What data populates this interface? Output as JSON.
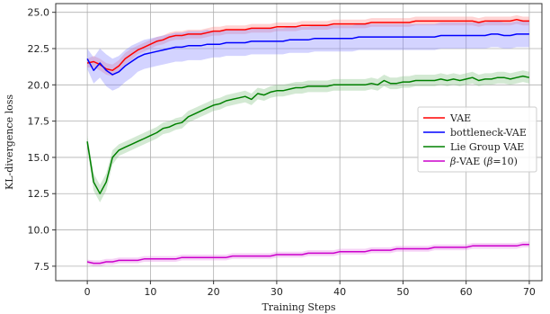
{
  "chart_data": {
    "type": "line",
    "xlabel": "Training Steps",
    "ylabel": "KL-divergence loss",
    "xlim": [
      -5,
      72
    ],
    "ylim": [
      6.5,
      25.6
    ],
    "xticks": [
      0,
      10,
      20,
      30,
      40,
      50,
      60,
      70
    ],
    "xtick_labels": [
      "0",
      "10",
      "20",
      "30",
      "40",
      "50",
      "60",
      "70"
    ],
    "yticks": [
      7.5,
      10.0,
      12.5,
      15.0,
      17.5,
      20.0,
      22.5,
      25.0
    ],
    "ytick_labels": [
      "7.5",
      "10.0",
      "12.5",
      "15.0",
      "17.5",
      "20.0",
      "22.5",
      "25.0"
    ],
    "grid": true,
    "legend_position": "center-right",
    "x": [
      0,
      1,
      2,
      3,
      4,
      5,
      6,
      7,
      8,
      9,
      10,
      11,
      12,
      13,
      14,
      15,
      16,
      17,
      18,
      19,
      20,
      21,
      22,
      23,
      24,
      25,
      26,
      27,
      28,
      29,
      30,
      31,
      32,
      33,
      34,
      35,
      36,
      37,
      38,
      39,
      40,
      41,
      42,
      43,
      44,
      45,
      46,
      47,
      48,
      49,
      50,
      51,
      52,
      53,
      54,
      55,
      56,
      57,
      58,
      59,
      60,
      61,
      62,
      63,
      64,
      65,
      66,
      67,
      68,
      69,
      70
    ],
    "series": [
      {
        "name": "VAE",
        "color": "#ff0000",
        "band_color": "#ff8080",
        "values": [
          21.5,
          21.6,
          21.4,
          21.1,
          21.0,
          21.3,
          21.8,
          22.1,
          22.4,
          22.6,
          22.8,
          23.0,
          23.1,
          23.3,
          23.4,
          23.4,
          23.5,
          23.5,
          23.5,
          23.6,
          23.7,
          23.7,
          23.8,
          23.8,
          23.8,
          23.8,
          23.9,
          23.9,
          23.9,
          23.9,
          24.0,
          24.0,
          24.0,
          24.0,
          24.1,
          24.1,
          24.1,
          24.1,
          24.1,
          24.2,
          24.2,
          24.2,
          24.2,
          24.2,
          24.2,
          24.3,
          24.3,
          24.3,
          24.3,
          24.3,
          24.3,
          24.3,
          24.4,
          24.4,
          24.4,
          24.4,
          24.4,
          24.4,
          24.4,
          24.4,
          24.4,
          24.4,
          24.3,
          24.4,
          24.4,
          24.4,
          24.4,
          24.4,
          24.5,
          24.4,
          24.4
        ],
        "band": [
          0.3,
          0.4,
          0.4,
          0.4,
          0.4,
          0.4,
          0.4,
          0.4,
          0.3,
          0.3,
          0.3,
          0.3,
          0.3,
          0.3,
          0.3,
          0.3,
          0.3,
          0.3,
          0.3,
          0.3,
          0.3,
          0.3,
          0.3,
          0.3,
          0.3,
          0.3,
          0.3,
          0.3,
          0.3,
          0.3,
          0.3,
          0.3,
          0.3,
          0.3,
          0.3,
          0.3,
          0.3,
          0.3,
          0.3,
          0.3,
          0.3,
          0.3,
          0.3,
          0.3,
          0.3,
          0.3,
          0.3,
          0.3,
          0.3,
          0.3,
          0.3,
          0.3,
          0.3,
          0.3,
          0.3,
          0.3,
          0.3,
          0.3,
          0.3,
          0.3,
          0.3,
          0.3,
          0.3,
          0.3,
          0.3,
          0.3,
          0.3,
          0.3,
          0.3,
          0.3,
          0.3
        ]
      },
      {
        "name": "bottleneck-VAE",
        "color": "#0000ff",
        "band_color": "#8080ff",
        "values": [
          21.8,
          21.0,
          21.5,
          21.0,
          20.7,
          20.9,
          21.3,
          21.6,
          21.9,
          22.1,
          22.2,
          22.3,
          22.4,
          22.5,
          22.6,
          22.6,
          22.7,
          22.7,
          22.7,
          22.8,
          22.8,
          22.8,
          22.9,
          22.9,
          22.9,
          22.9,
          23.0,
          23.0,
          23.0,
          23.0,
          23.0,
          23.0,
          23.1,
          23.1,
          23.1,
          23.1,
          23.2,
          23.2,
          23.2,
          23.2,
          23.2,
          23.2,
          23.2,
          23.3,
          23.3,
          23.3,
          23.3,
          23.3,
          23.3,
          23.3,
          23.3,
          23.3,
          23.3,
          23.3,
          23.3,
          23.3,
          23.4,
          23.4,
          23.4,
          23.4,
          23.4,
          23.4,
          23.4,
          23.4,
          23.5,
          23.5,
          23.4,
          23.4,
          23.5,
          23.5,
          23.5
        ],
        "band": [
          0.7,
          0.9,
          1.0,
          1.1,
          1.1,
          1.1,
          1.1,
          1.1,
          1.0,
          1.0,
          1.0,
          1.0,
          1.0,
          1.0,
          1.0,
          1.0,
          1.0,
          1.0,
          1.0,
          1.0,
          0.9,
          0.9,
          0.9,
          0.9,
          0.9,
          0.9,
          0.9,
          0.9,
          0.9,
          0.9,
          0.9,
          0.9,
          0.9,
          0.9,
          0.9,
          0.9,
          0.9,
          0.9,
          0.9,
          0.9,
          0.9,
          0.9,
          0.9,
          0.9,
          0.9,
          0.9,
          0.9,
          0.9,
          0.9,
          0.9,
          0.9,
          0.9,
          0.9,
          0.9,
          0.9,
          0.9,
          0.9,
          0.9,
          0.9,
          0.9,
          0.9,
          0.9,
          0.9,
          0.9,
          0.9,
          0.9,
          0.9,
          0.9,
          0.9,
          0.9,
          0.9
        ]
      },
      {
        "name": "Lie Group VAE",
        "color": "#008000",
        "band_color": "#80c080",
        "values": [
          16.1,
          13.3,
          12.5,
          13.3,
          15.0,
          15.5,
          15.7,
          15.9,
          16.1,
          16.3,
          16.5,
          16.7,
          17.0,
          17.1,
          17.3,
          17.4,
          17.8,
          18.0,
          18.2,
          18.4,
          18.6,
          18.7,
          18.9,
          19.0,
          19.1,
          19.2,
          19.0,
          19.4,
          19.3,
          19.5,
          19.6,
          19.6,
          19.7,
          19.8,
          19.8,
          19.9,
          19.9,
          19.9,
          19.9,
          20.0,
          20.0,
          20.0,
          20.0,
          20.0,
          20.0,
          20.1,
          20.0,
          20.3,
          20.1,
          20.1,
          20.2,
          20.2,
          20.3,
          20.3,
          20.3,
          20.3,
          20.4,
          20.3,
          20.4,
          20.3,
          20.4,
          20.5,
          20.3,
          20.4,
          20.4,
          20.5,
          20.5,
          20.4,
          20.5,
          20.6,
          20.5
        ],
        "band": [
          0.4,
          0.6,
          0.6,
          0.6,
          0.5,
          0.4,
          0.4,
          0.4,
          0.4,
          0.4,
          0.4,
          0.4,
          0.4,
          0.4,
          0.4,
          0.4,
          0.4,
          0.4,
          0.4,
          0.4,
          0.4,
          0.4,
          0.4,
          0.4,
          0.4,
          0.4,
          0.4,
          0.4,
          0.4,
          0.4,
          0.4,
          0.4,
          0.4,
          0.4,
          0.4,
          0.4,
          0.4,
          0.4,
          0.4,
          0.4,
          0.4,
          0.4,
          0.4,
          0.4,
          0.4,
          0.4,
          0.4,
          0.4,
          0.4,
          0.4,
          0.4,
          0.4,
          0.4,
          0.4,
          0.4,
          0.4,
          0.4,
          0.4,
          0.4,
          0.4,
          0.4,
          0.4,
          0.4,
          0.4,
          0.4,
          0.4,
          0.4,
          0.4,
          0.4,
          0.4,
          0.4
        ]
      },
      {
        "name": "β-VAE (β=10)",
        "color": "#cc00cc",
        "band_color": "#e680e6",
        "values": [
          7.8,
          7.7,
          7.7,
          7.8,
          7.8,
          7.9,
          7.9,
          7.9,
          7.9,
          8.0,
          8.0,
          8.0,
          8.0,
          8.0,
          8.0,
          8.1,
          8.1,
          8.1,
          8.1,
          8.1,
          8.1,
          8.1,
          8.1,
          8.2,
          8.2,
          8.2,
          8.2,
          8.2,
          8.2,
          8.2,
          8.3,
          8.3,
          8.3,
          8.3,
          8.3,
          8.4,
          8.4,
          8.4,
          8.4,
          8.4,
          8.5,
          8.5,
          8.5,
          8.5,
          8.5,
          8.6,
          8.6,
          8.6,
          8.6,
          8.7,
          8.7,
          8.7,
          8.7,
          8.7,
          8.7,
          8.8,
          8.8,
          8.8,
          8.8,
          8.8,
          8.8,
          8.9,
          8.9,
          8.9,
          8.9,
          8.9,
          8.9,
          8.9,
          8.9,
          9.0,
          9.0
        ],
        "band": [
          0.15,
          0.2,
          0.2,
          0.2,
          0.2,
          0.2,
          0.2,
          0.2,
          0.2,
          0.2,
          0.2,
          0.2,
          0.2,
          0.2,
          0.2,
          0.2,
          0.2,
          0.2,
          0.2,
          0.2,
          0.2,
          0.2,
          0.2,
          0.2,
          0.2,
          0.2,
          0.2,
          0.2,
          0.2,
          0.2,
          0.2,
          0.2,
          0.2,
          0.2,
          0.2,
          0.2,
          0.2,
          0.2,
          0.2,
          0.2,
          0.2,
          0.2,
          0.2,
          0.2,
          0.2,
          0.2,
          0.2,
          0.2,
          0.2,
          0.2,
          0.2,
          0.2,
          0.2,
          0.2,
          0.2,
          0.2,
          0.2,
          0.2,
          0.2,
          0.2,
          0.2,
          0.2,
          0.2,
          0.2,
          0.2,
          0.2,
          0.2,
          0.2,
          0.2,
          0.2,
          0.2
        ]
      }
    ],
    "legend": [
      {
        "label_prefix": "",
        "label": "VAE"
      },
      {
        "label_prefix": "",
        "label": "bottleneck-VAE"
      },
      {
        "label_prefix": "",
        "label": "Lie Group VAE"
      },
      {
        "label_prefix": "β",
        "label": "-VAE (",
        "label_beta": "β",
        "label_suffix": "=10)"
      }
    ]
  }
}
